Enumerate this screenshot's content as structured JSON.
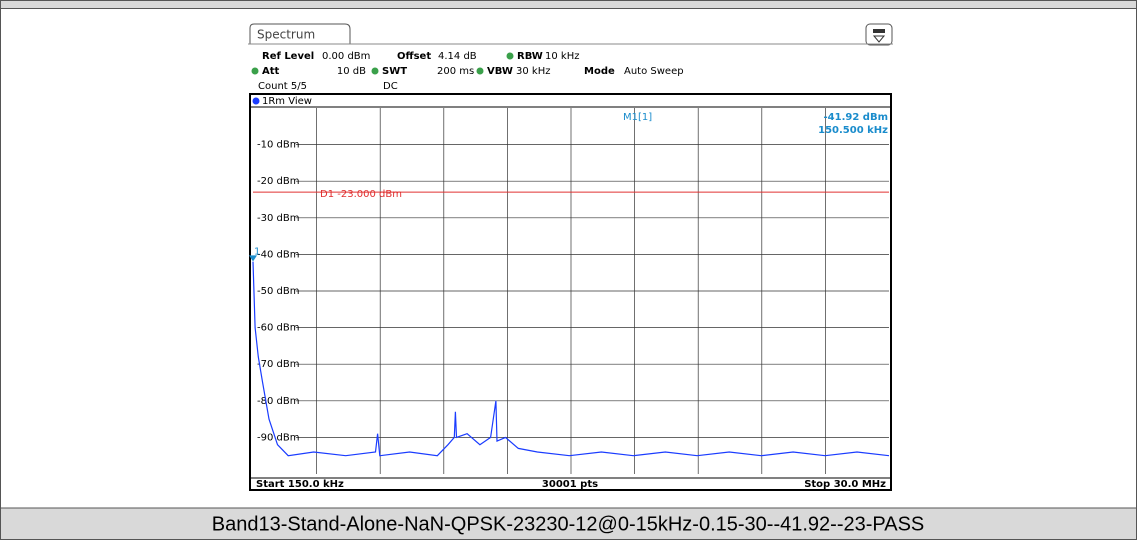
{
  "spectrum": {
    "tab": "Spectrum",
    "settings": {
      "ref_level_label": "Ref Level",
      "ref_level": "0.00 dBm",
      "offset_label": "Offset",
      "offset": "4.14 dB",
      "rbw_label": "RBW",
      "rbw": "10 kHz",
      "att_label": "Att",
      "att": "10 dB",
      "swt_label": "SWT",
      "swt": "200 ms",
      "vbw_label": "VBW",
      "vbw": "30 kHz",
      "mode_label": "Mode",
      "mode": "Auto Sweep",
      "count": "Count 5/5",
      "coupling": "DC"
    },
    "view": "1Rm View",
    "chart_data": {
      "type": "line",
      "xlim": [
        0.15,
        30
      ],
      "ylim": [
        -100,
        0
      ],
      "yticks": [
        {
          "value": -10,
          "label": "-10 dBm"
        },
        {
          "value": -20,
          "label": "-20 dBm"
        },
        {
          "value": -30,
          "label": "-30 dBm"
        },
        {
          "value": -40,
          "label": "-40 dBm"
        },
        {
          "value": -50,
          "label": "-50 dBm"
        },
        {
          "value": -60,
          "label": "-60 dBm"
        },
        {
          "value": -70,
          "label": "-70 dBm"
        },
        {
          "value": -80,
          "label": "-80 dBm"
        },
        {
          "value": -90,
          "label": "-90 dBm"
        }
      ],
      "x_divisions": 10,
      "grid": true,
      "series": [
        {
          "name": "1Rm",
          "color": "#1a3cff",
          "x": [
            0.15,
            0.25,
            0.4,
            0.6,
            0.9,
            1.3,
            1.8,
            3,
            4.5,
            5.9,
            6.0,
            6.1,
            7.5,
            8.8,
            9.3,
            9.6,
            9.65,
            9.7,
            10.2,
            10.8,
            11.3,
            11.55,
            11.6,
            12.0,
            12.6,
            13.5,
            15,
            16.5,
            18,
            19.5,
            21,
            22.5,
            24,
            25.5,
            27,
            28.5,
            30
          ],
          "values": [
            -42,
            -60,
            -68,
            -75,
            -85,
            -92,
            -95,
            -94,
            -95,
            -94,
            -89,
            -95,
            -94,
            -95,
            -92,
            -90,
            -83,
            -90,
            -89,
            -92,
            -90,
            -80,
            -91,
            -90,
            -93,
            -94,
            -95,
            -94,
            -95,
            -94,
            -95,
            -94,
            -95,
            -94,
            -95,
            -94,
            -95
          ]
        }
      ],
      "display_line": {
        "value": -23,
        "label": "D1  -23.000 dBm",
        "color": "#e03030"
      },
      "marker": {
        "x": 0.1505,
        "value": -41.92,
        "number": "1",
        "name": "M1[1]",
        "value_label": "-41.92 dBm",
        "x_label": "150.500 kHz",
        "color": "#1a8ccc"
      },
      "start_label": "Start 150.0 kHz",
      "points_label": "30001 pts",
      "stop_label": "Stop 30.0 MHz"
    }
  },
  "caption": "Band13-Stand-Alone-NaN-QPSK-23230-12@0-15kHz-0.15-30--41.92--23-PASS"
}
